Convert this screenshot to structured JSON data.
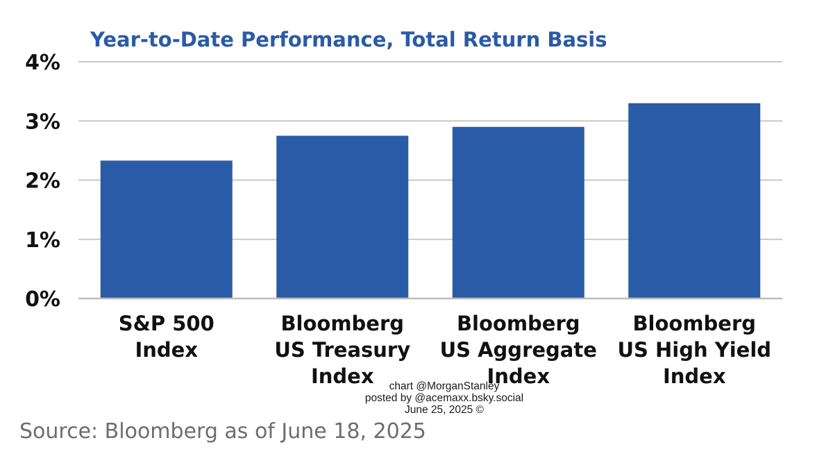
{
  "chart_data": {
    "type": "bar",
    "title": "Year-to-Date Performance, Total Return Basis",
    "categories": [
      [
        "S&P 500",
        "Index"
      ],
      [
        "Bloomberg",
        "US Treasury",
        "Index"
      ],
      [
        "Bloomberg",
        "US Aggregate",
        "Index"
      ],
      [
        "Bloomberg",
        "US High Yield",
        "Index"
      ]
    ],
    "values": [
      2.33,
      2.75,
      2.9,
      3.3
    ],
    "ylim": [
      0,
      4
    ],
    "yticks": [
      0,
      1,
      2,
      3,
      4
    ],
    "ytick_labels": [
      "0%",
      "1%",
      "2%",
      "3%",
      "4%"
    ],
    "grid": true,
    "bar_color": "#2a5ba6",
    "grid_color": "#c8c8c8"
  },
  "credit": {
    "line1": "chart @MorganStanley",
    "line2": "posted by @acemaxx.bsky.social",
    "line3": "June 25, 2025 ©"
  },
  "source": "Source: Bloomberg as of June 18, 2025"
}
